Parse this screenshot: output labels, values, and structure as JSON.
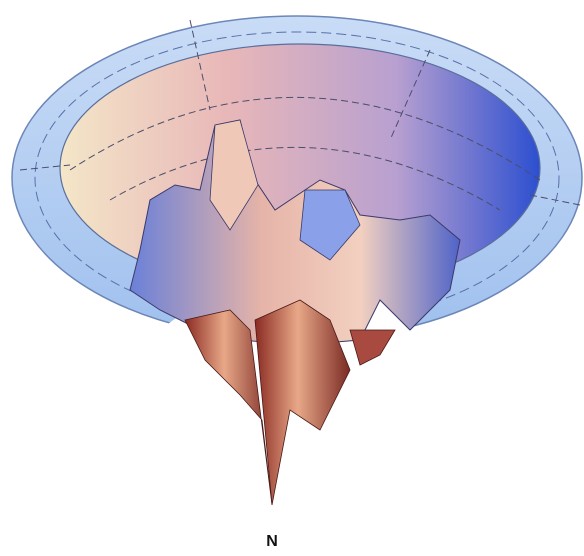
{
  "label": "N"
}
